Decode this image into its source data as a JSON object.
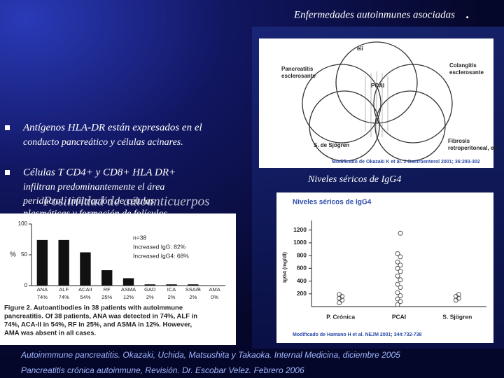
{
  "header": {
    "title": "Enfermedades autoinmunes asociadas",
    "dot": "."
  },
  "bullets": [
    {
      "lines": [
        "Antígenos HLA-DR están expresados en el",
        "conducto pancreático y células acinares."
      ]
    },
    {
      "lines": [
        "Células T CD4+ y CD8+ HLA DR+",
        "infiltran predominantemente el área",
        "periductal, infiltración de células",
        "plasmáticas y formación de folículos"
      ]
    }
  ],
  "overlay_heading": "Positividad de autoanticuerpos",
  "venn": {
    "top": "eii",
    "left": [
      "Pancreatitis",
      "esclerosante"
    ],
    "right": [
      "Colangitis",
      "esclerosante"
    ],
    "center": "PCAI",
    "bottom_left": "S. de Sjögren",
    "bottom_right": [
      "Fibrosis",
      "retroperitoneal, etc"
    ],
    "caption": "Modificado de Okazaki K et al. J Gastroenterol 2001; 36:293-302"
  },
  "igg4_heading": "Niveles séricos de IgG4",
  "chart_data": [
    {
      "type": "bar",
      "y_label": "%",
      "categories": [
        "ANA",
        "ALF",
        "ACAII",
        "RF",
        "ASMA",
        "GAD",
        "ICA",
        "SSA/B",
        "AMA"
      ],
      "values": [
        74,
        74,
        54,
        25,
        12,
        2,
        2,
        2,
        0
      ],
      "value_labels": [
        "74%",
        "74%",
        "54%",
        "25%",
        "12%",
        "2%",
        "2%",
        "2%",
        "0%"
      ],
      "color": "#111111",
      "ylim": [
        0,
        100
      ],
      "yticks": [
        0,
        50,
        100
      ],
      "annotations": [
        "n=38",
        "Increased IgG: 82%",
        "Increased IgG4: 68%"
      ],
      "caption": [
        "Figure 2.  Autoantibodies in 38 patients with autoimmune",
        "pancreatitis. Of 38 patients, ANA was detected in 74%, ALF in",
        "74%, ACA-II in 54%, RF in 25%, and ASMA in 12%. However,",
        "AMA was absent in all cases."
      ]
    },
    {
      "type": "strip",
      "title": "Niveles séricos de IgG4",
      "y_label": "IgG4 (mg/dl)",
      "categories": [
        "P. Crónica",
        "PCAI",
        "S. Sjögren"
      ],
      "values": [
        [
          60,
          100,
          130,
          160,
          190
        ],
        [
          30,
          80,
          120,
          170,
          220,
          300,
          350,
          420,
          480,
          550,
          600,
          650,
          700,
          780,
          830,
          1150
        ],
        [
          100,
          130,
          160,
          190
        ]
      ],
      "color": "#555555",
      "ylim": [
        0,
        1350
      ],
      "yticks": [
        200,
        400,
        600,
        800,
        1000,
        1200
      ],
      "caption": "Modificado de Hamano H et al. NEJM 2001; 344:732-738"
    }
  ],
  "footer": [
    "Autoinmmune pancreatitis. Okazaki, Uchida, Matsushita y Takaoka. Internal Medicina, diciembre 2005",
    "Pancreatitis crónica autoinmune, Revisión. Dr. Escobar Velez. Febrero 2006"
  ]
}
